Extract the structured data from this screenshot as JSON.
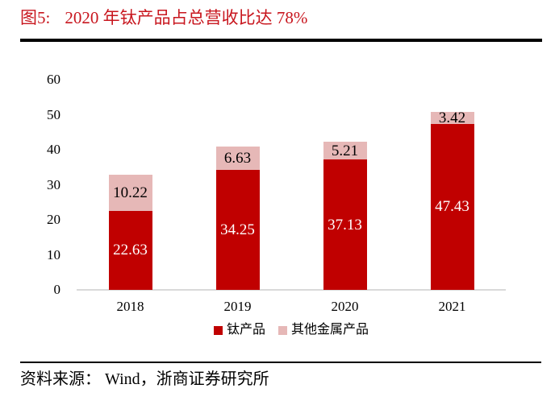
{
  "figure": {
    "label": "图5:",
    "title": "2020 年钛产品占总营收比达 78%",
    "title_color": "#c8161e"
  },
  "source": {
    "text": "资料来源： Wind，浙商证券研究所"
  },
  "chart_data": {
    "type": "bar",
    "stacked": true,
    "title": "2020 年钛产品占总营收比达 78%",
    "xlabel": "",
    "ylabel": "",
    "categories": [
      "2018",
      "2019",
      "2020",
      "2021"
    ],
    "series": [
      {
        "name": "钛产品",
        "key": "titanium",
        "color": "#c00000",
        "label_color": "#ffffff",
        "values": [
          22.63,
          34.25,
          37.13,
          47.43
        ]
      },
      {
        "name": "其他金属产品",
        "key": "other-metal",
        "color": "#e6b8b7",
        "label_color": "#000000",
        "values": [
          10.22,
          6.63,
          5.21,
          3.42
        ]
      }
    ],
    "ylim": [
      0,
      60
    ],
    "yticks": [
      0,
      10,
      20,
      30,
      40,
      50,
      60
    ],
    "grid": false,
    "legend_position": "bottom",
    "value_label_decimals": 2,
    "axis_line_color": "#d9d9d9"
  }
}
